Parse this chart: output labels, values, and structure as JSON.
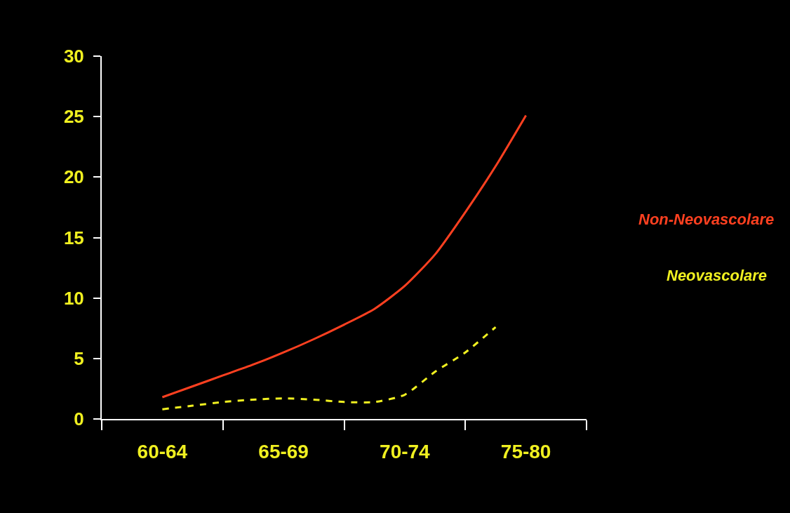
{
  "chart_data": {
    "type": "line",
    "categories": [
      null,
      null,
      "60-64",
      null,
      null,
      null,
      "65-69",
      null,
      null,
      null,
      "70-74",
      null,
      null,
      null,
      "75-80",
      null,
      null
    ],
    "ylim": [
      0,
      30
    ],
    "yticks": [
      0,
      5,
      10,
      15,
      20,
      25,
      30
    ],
    "grid": false,
    "legend": false,
    "marker": "none",
    "series": [
      {
        "name": "Non-Neovascolare",
        "color": "#ff4020",
        "line_style": "solid",
        "values": [
          null,
          null,
          1.8,
          2.7,
          3.6,
          4.5,
          5.5,
          6.6,
          7.8,
          9.1,
          11.0,
          13.6,
          17.1,
          20.9,
          25.1,
          null,
          null
        ]
      },
      {
        "name": "Neovascolare",
        "color": "#f0f020",
        "line_style": "dashed",
        "values": [
          null,
          null,
          0.8,
          1.1,
          1.4,
          1.6,
          1.7,
          1.6,
          1.4,
          1.4,
          2.0,
          3.9,
          5.5,
          7.6,
          null,
          null,
          null
        ]
      }
    ]
  }
}
